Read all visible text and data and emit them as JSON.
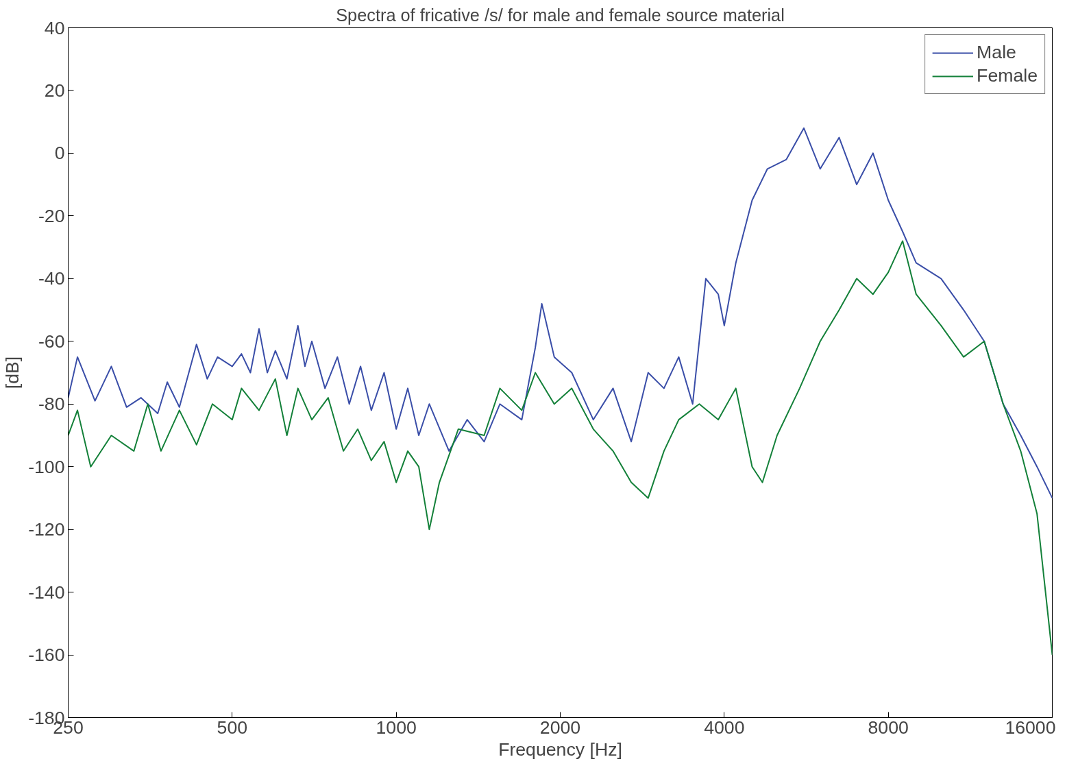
{
  "chart_data": {
    "type": "line",
    "title": "Spectra of fricative /s/ for male and female source material",
    "xlabel": "Frequency [Hz]",
    "ylabel": "[dB]",
    "log": "x",
    "xlim": [
      250,
      16000
    ],
    "xticks": [
      250,
      500,
      1000,
      2000,
      4000,
      8000,
      16000
    ],
    "ylim": [
      -180,
      40
    ],
    "yticks": [
      -180,
      -160,
      -140,
      -120,
      -100,
      -80,
      -60,
      -40,
      -20,
      0,
      20,
      40
    ],
    "grid": false,
    "legend": "top right",
    "line_style": "solid",
    "marker": "none",
    "series": [
      {
        "name": "Male",
        "color": "#3a4ea8",
        "x": [
          250,
          260,
          280,
          300,
          320,
          340,
          365,
          380,
          400,
          430,
          450,
          470,
          500,
          520,
          540,
          560,
          580,
          600,
          630,
          660,
          680,
          700,
          740,
          780,
          820,
          860,
          900,
          950,
          1000,
          1050,
          1100,
          1150,
          1250,
          1350,
          1450,
          1550,
          1700,
          1800,
          1850,
          1950,
          2100,
          2300,
          2500,
          2700,
          2900,
          3100,
          3300,
          3500,
          3700,
          3900,
          4000,
          4200,
          4500,
          4800,
          5200,
          5600,
          6000,
          6500,
          7000,
          7500,
          8000,
          8500,
          9000,
          10000,
          11000,
          12000,
          13000,
          14000,
          15000,
          16000
        ],
        "values": [
          -78,
          -65,
          -79,
          -68,
          -81,
          -78,
          -83,
          -73,
          -81,
          -61,
          -72,
          -65,
          -68,
          -64,
          -70,
          -56,
          -70,
          -63,
          -72,
          -55,
          -68,
          -60,
          -75,
          -65,
          -80,
          -68,
          -82,
          -70,
          -88,
          -75,
          -90,
          -80,
          -95,
          -85,
          -92,
          -80,
          -85,
          -62,
          -48,
          -65,
          -70,
          -85,
          -75,
          -92,
          -70,
          -75,
          -65,
          -80,
          -40,
          -45,
          -55,
          -35,
          -15,
          -5,
          -2,
          8,
          -5,
          5,
          -10,
          0,
          -15,
          -25,
          -35,
          -40,
          -50,
          -60,
          -80,
          -90,
          -100,
          -110
        ]
      },
      {
        "name": "Female",
        "color": "#138039",
        "x": [
          250,
          260,
          275,
          300,
          330,
          350,
          370,
          400,
          430,
          460,
          500,
          520,
          560,
          600,
          630,
          660,
          700,
          750,
          800,
          850,
          900,
          950,
          1000,
          1050,
          1100,
          1150,
          1200,
          1300,
          1450,
          1550,
          1700,
          1800,
          1950,
          2100,
          2300,
          2500,
          2700,
          2900,
          3100,
          3300,
          3600,
          3900,
          4200,
          4500,
          4700,
          5000,
          5500,
          6000,
          6500,
          7000,
          7500,
          8000,
          8500,
          9000,
          10000,
          11000,
          12000,
          13000,
          14000,
          15000,
          16000
        ],
        "values": [
          -90,
          -82,
          -100,
          -90,
          -95,
          -80,
          -95,
          -82,
          -93,
          -80,
          -85,
          -75,
          -82,
          -72,
          -90,
          -75,
          -85,
          -78,
          -95,
          -88,
          -98,
          -92,
          -105,
          -95,
          -100,
          -120,
          -105,
          -88,
          -90,
          -75,
          -82,
          -70,
          -80,
          -75,
          -88,
          -95,
          -105,
          -110,
          -95,
          -85,
          -80,
          -85,
          -75,
          -100,
          -105,
          -90,
          -75,
          -60,
          -50,
          -40,
          -45,
          -38,
          -28,
          -45,
          -55,
          -65,
          -60,
          -80,
          -95,
          -115,
          -160
        ]
      }
    ]
  }
}
